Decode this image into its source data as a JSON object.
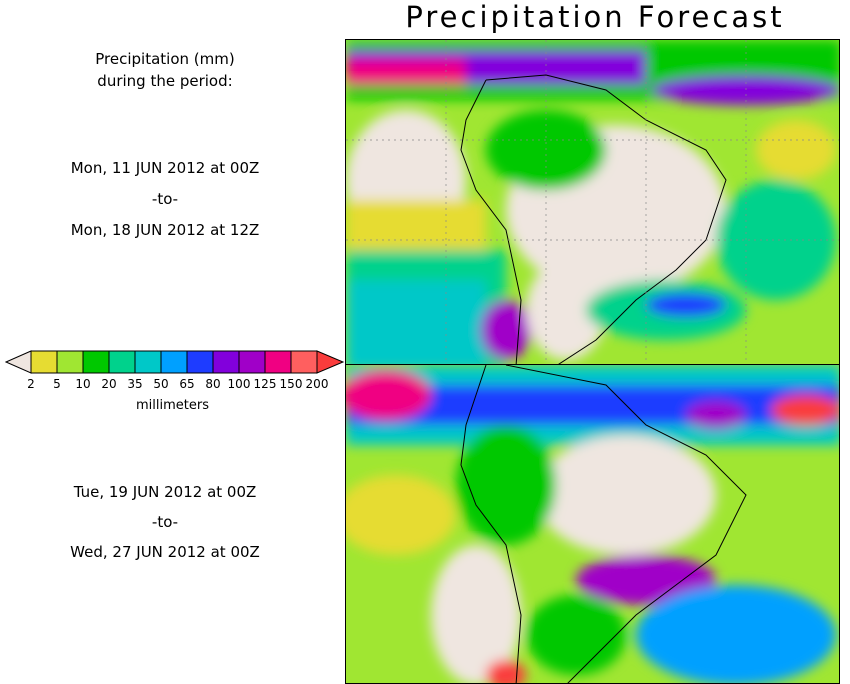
{
  "title": "Precipitation Forecast",
  "side": {
    "heading_line1": "Precipitation (mm)",
    "heading_line2": "during the period:",
    "period1": {
      "start": "Mon, 11 JUN 2012 at 00Z",
      "to": "-to-",
      "end": "Mon, 18 JUN 2012 at 12Z"
    },
    "period2": {
      "start": "Tue, 19 JUN 2012 at 00Z",
      "to": "-to-",
      "end": "Wed, 27 JUN 2012 at 00Z"
    }
  },
  "legend": {
    "unit": "millimeters",
    "ticks": [
      "2",
      "5",
      "10",
      "20",
      "35",
      "50",
      "65",
      "80",
      "100",
      "125",
      "150",
      "200"
    ],
    "below_color": "#efe6e0",
    "colors": [
      "#e6dc32",
      "#a0e632",
      "#00c800",
      "#00d28c",
      "#00c8c8",
      "#00a0ff",
      "#1e3cff",
      "#8200dc",
      "#a000c8",
      "#f00082",
      "#ff5f5f"
    ],
    "above_color": "#fa3c3c"
  }
}
